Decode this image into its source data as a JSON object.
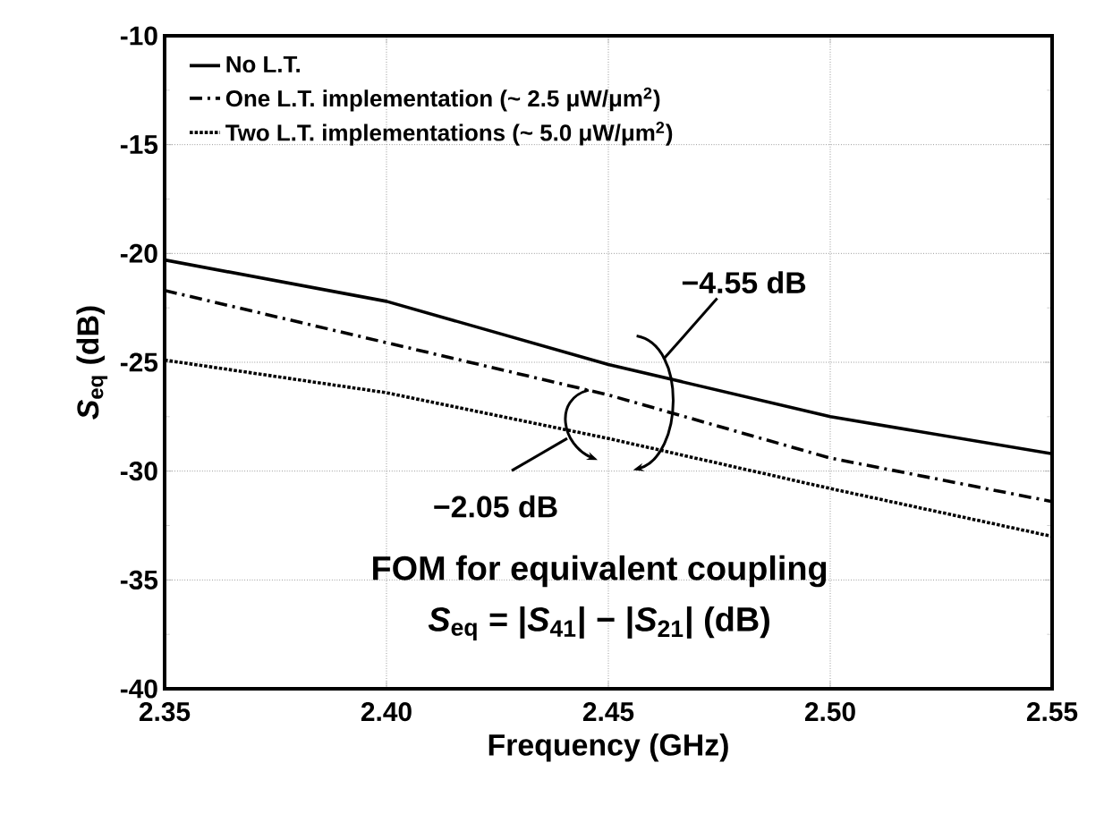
{
  "chart_data": {
    "type": "line",
    "xlabel": "Frequency (GHz)",
    "ylabel": "*S*$_{eq}$ (dB)",
    "x": [
      2.35,
      2.4,
      2.45,
      2.5,
      2.55
    ],
    "series": [
      {
        "name": "No L.T.",
        "color": "#000000",
        "line_style": "solid",
        "values": [
          -20.3,
          -22.2,
          -25.1,
          -27.5,
          -29.2
        ]
      },
      {
        "name": "One L.T. implementation (~ 2.5 μW/μm$^{2}$)",
        "color": "#000000",
        "line_style": "dashdot",
        "values": [
          -21.7,
          -24.1,
          -26.5,
          -29.4,
          -31.4
        ]
      },
      {
        "name": "Two L.T. implementations (~ 5.0 μW/μm$^{2}$)",
        "color": "#000000",
        "line_style": "dotted",
        "values": [
          -24.9,
          -26.4,
          -28.5,
          -30.8,
          -33.0
        ]
      }
    ],
    "xlim": [
      2.35,
      2.55
    ],
    "xticks": [
      {
        "value": 2.35,
        "label": "2.35"
      },
      {
        "value": 2.4,
        "label": "2.40"
      },
      {
        "value": 2.45,
        "label": "2.45"
      },
      {
        "value": 2.5,
        "label": "2.50"
      },
      {
        "value": 2.55,
        "label": "2.55"
      }
    ],
    "ylim": [
      -40,
      -10
    ],
    "yticks": [
      -40,
      -35,
      -30,
      -25,
      -20,
      -15,
      -10
    ],
    "grid": true,
    "legend": "top left",
    "marker": "none",
    "annotations": [
      {
        "text": "−4.55 dB",
        "x": 2.46,
        "y": -25.6
      },
      {
        "text": "−2.05 dB",
        "x": 2.45,
        "y": -28.5
      },
      "FOM for equivalent coupling",
      "*S*$_{eq}$ = |*S*$_{41}$| − |*S*$_{21}$| (dB)"
    ]
  }
}
